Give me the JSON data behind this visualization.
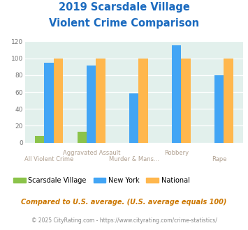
{
  "title_line1": "2019 Scarsdale Village",
  "title_line2": "Violent Crime Comparison",
  "categories": [
    "All Violent Crime",
    "Aggravated Assault",
    "Murder & Mans...",
    "Robbery",
    "Rape"
  ],
  "scarsdale": [
    8,
    13,
    0,
    0,
    0
  ],
  "new_york": [
    95,
    91,
    58,
    115,
    80
  ],
  "national": [
    100,
    100,
    100,
    100,
    100
  ],
  "color_scarsdale": "#8bc34a",
  "color_new_york": "#42a5f5",
  "color_national": "#ffb74d",
  "bg_color": "#e2f0ec",
  "title_color": "#1a6abf",
  "tick_color": "#aaaaaa",
  "label_color": "#b0a090",
  "legend_labels": [
    "Scarsdale Village",
    "New York",
    "National"
  ],
  "footnote1": "Compared to U.S. average. (U.S. average equals 100)",
  "footnote2": "© 2025 CityRating.com - https://www.cityrating.com/crime-statistics/",
  "footnote1_color": "#cc7700",
  "footnote2_color": "#888888",
  "footnote2_link_color": "#4488cc",
  "ylim": [
    0,
    120
  ],
  "yticks": [
    0,
    20,
    40,
    60,
    80,
    100,
    120
  ],
  "bar_width": 0.22
}
